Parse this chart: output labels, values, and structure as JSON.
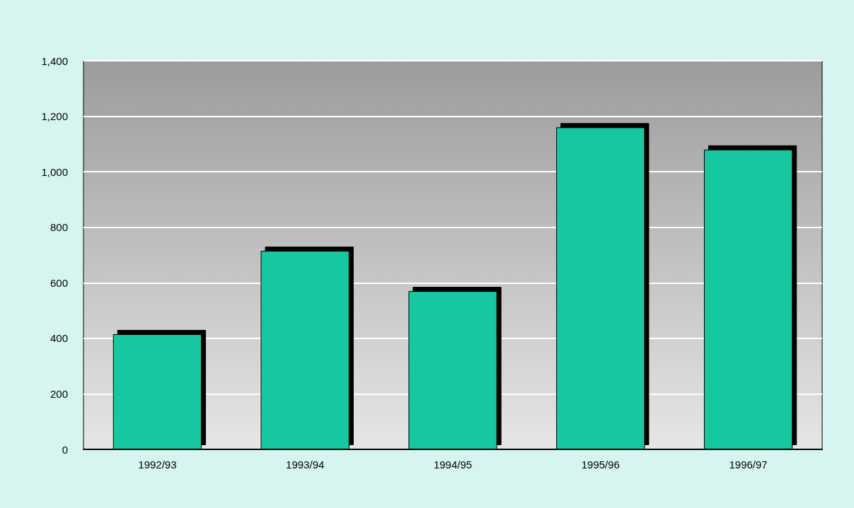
{
  "chart_data": {
    "type": "bar",
    "categories": [
      "1992/93",
      "1993/94",
      "1994/95",
      "1995/96",
      "1996/97"
    ],
    "values": [
      415,
      715,
      570,
      1160,
      1080
    ],
    "color": "#14c79f",
    "ylim": [
      0,
      1400
    ],
    "yticks": [
      0,
      {
        "value": 200,
        "label": "200"
      },
      {
        "value": 400,
        "label": "400"
      },
      {
        "value": 600,
        "label": "600"
      },
      {
        "value": 800,
        "label": "800"
      },
      {
        "value": 1000,
        "label": "1,000"
      },
      {
        "value": 1200,
        "label": "1,200"
      },
      {
        "value": 1400,
        "label": "1,400"
      }
    ],
    "grid": "y"
  }
}
